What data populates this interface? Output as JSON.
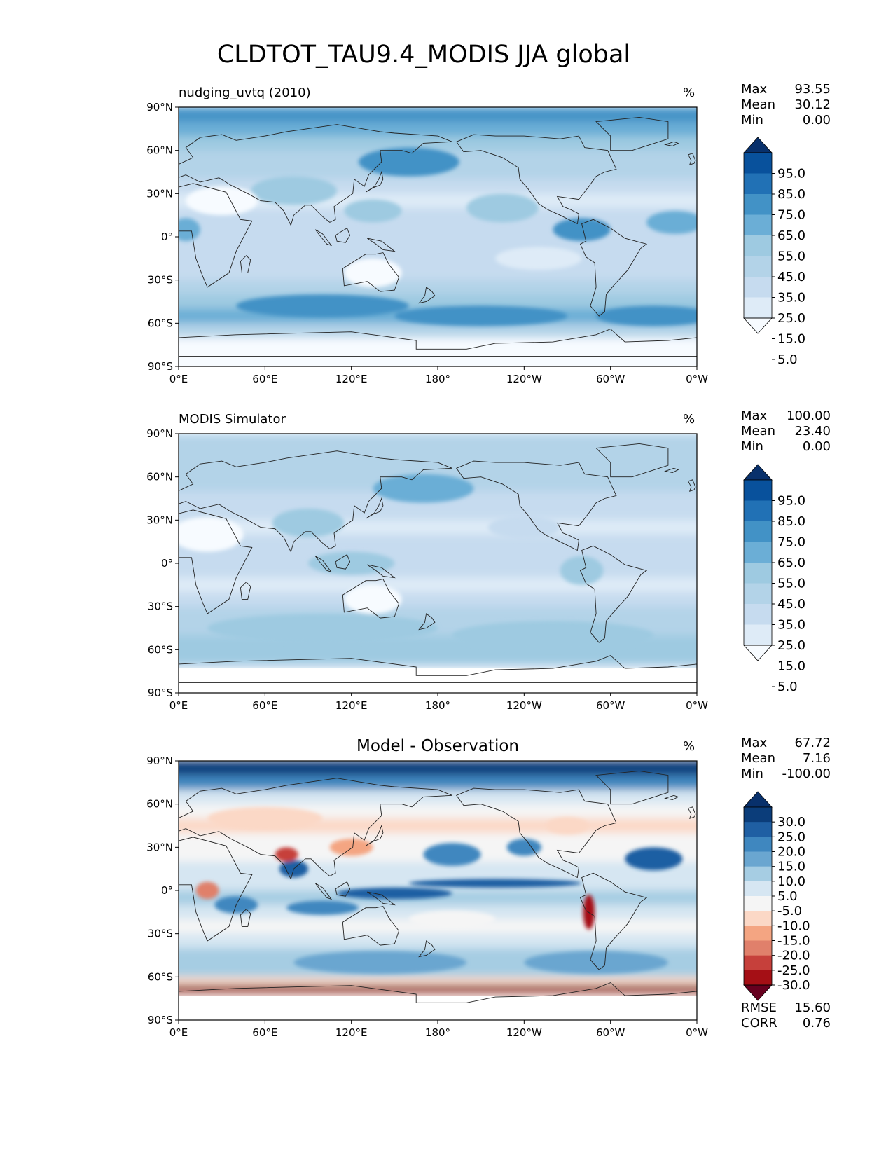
{
  "figure": {
    "title": "CLDTOT_TAU9.4_MODIS JJA global"
  },
  "axes": {
    "lat_ticks": [
      "90°N",
      "60°N",
      "30°N",
      "0°",
      "30°S",
      "60°S",
      "90°S"
    ],
    "lon_ticks": [
      "0°E",
      "60°E",
      "120°E",
      "180°",
      "120°W",
      "60°W",
      "0°W"
    ]
  },
  "colors": {
    "blues": [
      "#f7fbff",
      "#deebf7",
      "#c6dbef",
      "#b3d3e8",
      "#9ecae1",
      "#6baed6",
      "#4292c6",
      "#2171b5",
      "#08519c",
      "#08306b"
    ],
    "diverging": [
      "#67001f",
      "#a50f15",
      "#c6403b",
      "#e0806b",
      "#f4a582",
      "#fbd8c6",
      "#f5f5f5",
      "#d6e6f2",
      "#a6cde3",
      "#6aa6d0",
      "#3f87bf",
      "#1f5fa3",
      "#0b3d7a",
      "#08306b"
    ],
    "land_outline": "#222222"
  },
  "chart_data": [
    {
      "type": "heatmap",
      "panel": "model",
      "title": "nudging_uvtq (2010)",
      "units": "%",
      "stats": [
        {
          "label": "Max",
          "value": "93.55"
        },
        {
          "label": "Mean",
          "value": "30.12"
        },
        {
          "label": "Min",
          "value": "0.00"
        }
      ],
      "colorbar_levels": [
        "95.0",
        "85.0",
        "75.0",
        "65.0",
        "55.0",
        "45.0",
        "35.0",
        "25.0",
        "15.0",
        "5.0"
      ],
      "zonal_profile": {
        "lat": [
          90,
          80,
          70,
          60,
          50,
          40,
          30,
          20,
          10,
          0,
          -10,
          -20,
          -30,
          -40,
          -50,
          -55,
          -60,
          -70,
          -80,
          -90
        ],
        "value": [
          65,
          55,
          45,
          40,
          35,
          25,
          20,
          18,
          30,
          25,
          20,
          22,
          28,
          40,
          55,
          60,
          55,
          10,
          8,
          8
        ]
      },
      "xlabel": "",
      "ylabel": "",
      "xlim": [
        0,
        360
      ],
      "ylim": [
        -90,
        90
      ]
    },
    {
      "type": "heatmap",
      "panel": "observation",
      "title": "MODIS Simulator",
      "units": "%",
      "stats": [
        {
          "label": "Max",
          "value": "100.00"
        },
        {
          "label": "Mean",
          "value": "23.40"
        },
        {
          "label": "Min",
          "value": "0.00"
        }
      ],
      "colorbar_levels": [
        "95.0",
        "85.0",
        "75.0",
        "65.0",
        "55.0",
        "45.0",
        "35.0",
        "25.0",
        "15.0",
        "5.0"
      ],
      "zonal_profile": {
        "lat": [
          90,
          80,
          70,
          60,
          50,
          40,
          30,
          20,
          10,
          0,
          -10,
          -20,
          -30,
          -40,
          -50,
          -60,
          -70,
          -73,
          -90
        ],
        "value": [
          35,
          35,
          32,
          30,
          32,
          25,
          18,
          15,
          25,
          22,
          18,
          20,
          25,
          35,
          42,
          45,
          40,
          0,
          0
        ]
      },
      "missing_below_lat": -73,
      "xlabel": "",
      "ylabel": "",
      "xlim": [
        0,
        360
      ],
      "ylim": [
        -90,
        90
      ]
    },
    {
      "type": "heatmap",
      "panel": "difference",
      "title": "Model - Observation",
      "units": "%",
      "stats": [
        {
          "label": "Max",
          "value": "67.72"
        },
        {
          "label": "Mean",
          "value": "7.16"
        },
        {
          "label": "Min",
          "value": "-100.00"
        }
      ],
      "colorbar_levels": [
        "30.0",
        "25.0",
        "20.0",
        "15.0",
        "10.0",
        "5.0",
        "-5.0",
        "-10.0",
        "-15.0",
        "-20.0",
        "-25.0",
        "-30.0"
      ],
      "footer_stats": [
        {
          "label": "RMSE",
          "value": "15.60"
        },
        {
          "label": "CORR",
          "value": "0.76"
        }
      ],
      "zonal_profile": {
        "lat": [
          90,
          80,
          70,
          60,
          50,
          40,
          30,
          20,
          10,
          0,
          -10,
          -20,
          -30,
          -40,
          -50,
          -60,
          -66,
          -70,
          -73,
          -90
        ],
        "value": [
          35,
          30,
          12,
          5,
          -5,
          -8,
          0,
          5,
          10,
          8,
          12,
          5,
          2,
          8,
          15,
          12,
          -25,
          -40,
          0,
          0
        ]
      },
      "missing_below_lat": -73,
      "xlabel": "",
      "ylabel": "",
      "xlim": [
        0,
        360
      ],
      "ylim": [
        -90,
        90
      ]
    }
  ]
}
